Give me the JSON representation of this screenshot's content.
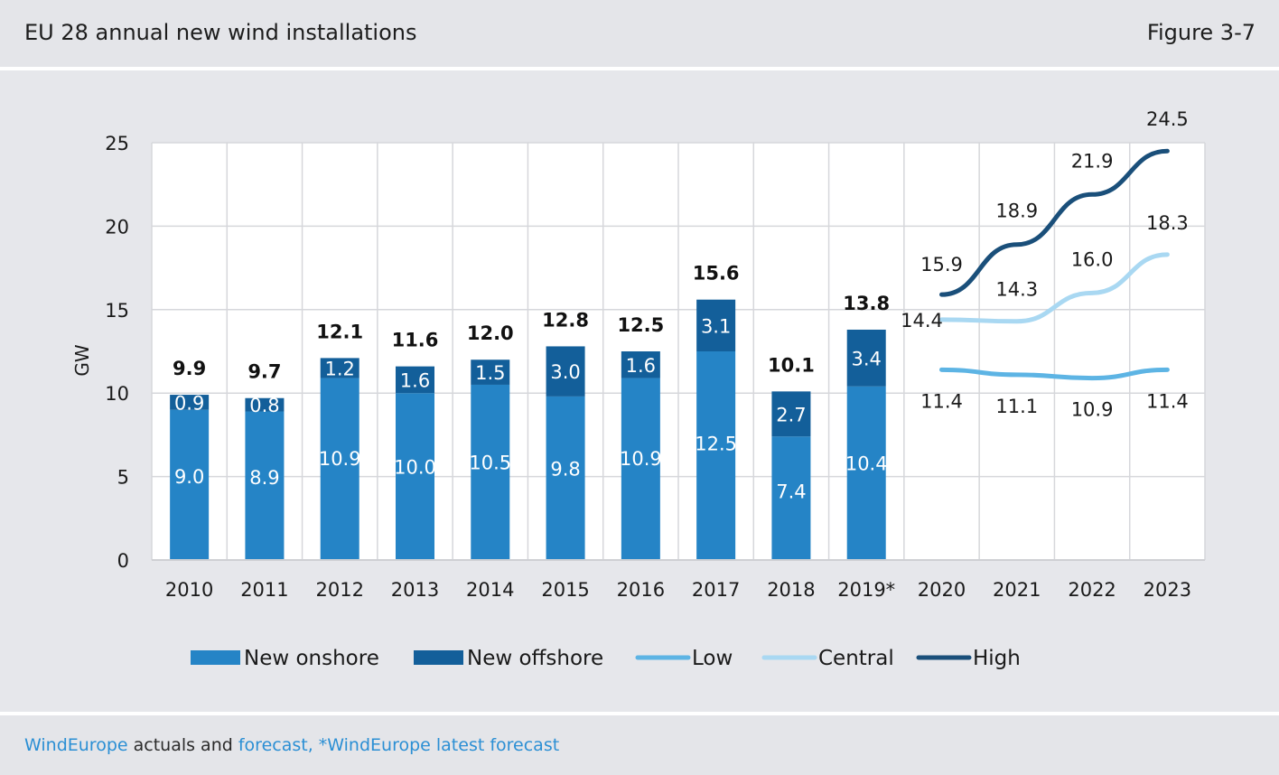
{
  "header": {
    "title": "EU 28 annual new wind installations",
    "figure": "Figure 3-7"
  },
  "footer": {
    "source_link1": "WindEurope",
    "source_text": " actuals and ",
    "source_link2": "forecast, *WindEurope latest forecast"
  },
  "chart_data": {
    "type": "bar",
    "ylabel": "GW",
    "ylim": [
      0,
      25
    ],
    "yticks": [
      0,
      5,
      10,
      15,
      20,
      25
    ],
    "categories": [
      "2010",
      "2011",
      "2012",
      "2013",
      "2014",
      "2015",
      "2016",
      "2017",
      "2018",
      "2019*",
      "2020",
      "2021",
      "2022",
      "2023"
    ],
    "series": [
      {
        "name": "New onshore",
        "kind": "bar",
        "color": "#2584c6",
        "values": [
          9.0,
          8.9,
          10.9,
          10.0,
          10.5,
          9.8,
          10.9,
          12.5,
          7.4,
          10.4,
          null,
          null,
          null,
          null
        ]
      },
      {
        "name": "New offshore",
        "kind": "bar",
        "color": "#135f9a",
        "values": [
          0.9,
          0.8,
          1.2,
          1.6,
          1.5,
          3.0,
          1.6,
          3.1,
          2.7,
          3.4,
          null,
          null,
          null,
          null
        ]
      },
      {
        "name": "Low",
        "kind": "line",
        "color": "#5db4e4",
        "values": [
          null,
          null,
          null,
          null,
          null,
          null,
          null,
          null,
          null,
          null,
          11.4,
          11.1,
          10.9,
          11.4
        ]
      },
      {
        "name": "Central",
        "kind": "line",
        "color": "#a9d8f2",
        "values": [
          null,
          null,
          null,
          null,
          null,
          null,
          null,
          null,
          null,
          null,
          14.4,
          14.3,
          16.0,
          18.3
        ]
      },
      {
        "name": "High",
        "kind": "line",
        "color": "#1a4f7a",
        "values": [
          null,
          null,
          null,
          null,
          null,
          null,
          null,
          null,
          null,
          null,
          15.9,
          18.9,
          21.9,
          24.5
        ]
      }
    ],
    "bar_labels": {
      "totals": [
        "9.9",
        "9.7",
        "12.1",
        "11.6",
        "12.0",
        "12.8",
        "12.5",
        "15.6",
        "10.1",
        "13.8"
      ],
      "onshore": [
        "9.0",
        "8.9",
        "10.9",
        "10.0",
        "10.5",
        "9.8",
        "10.9",
        "12.5",
        "7.4",
        "10.4"
      ],
      "offshore": [
        "0.9",
        "0.8",
        "1.2",
        "1.6",
        "1.5",
        "3.0",
        "1.6",
        "3.1",
        "2.7",
        "3.4"
      ]
    },
    "line_labels": {
      "Low": [
        "11.4",
        "11.1",
        "10.9",
        "11.4"
      ],
      "Central": [
        "14.4",
        "14.3",
        "16.0",
        "18.3"
      ],
      "High": [
        "15.9",
        "18.9",
        "21.9",
        "24.5"
      ]
    },
    "grid": true,
    "legend": "bottom"
  }
}
